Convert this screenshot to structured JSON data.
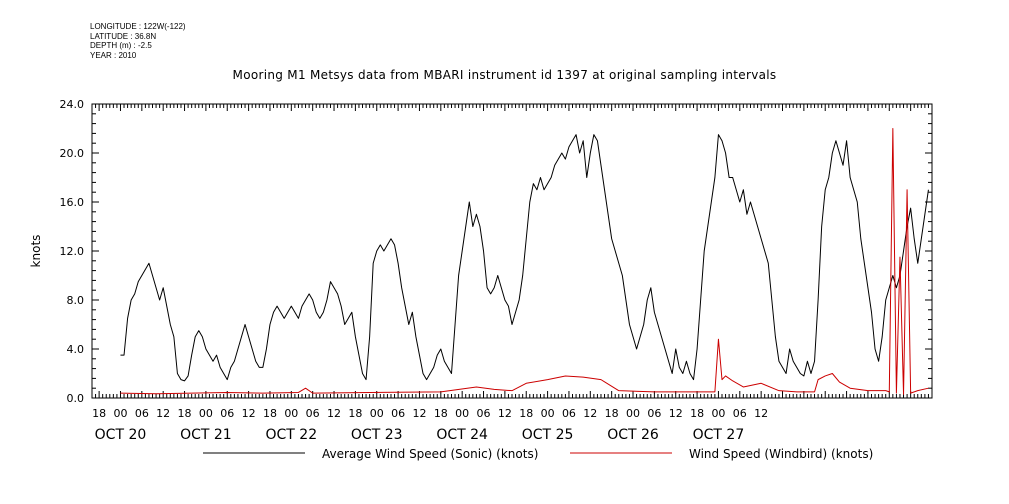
{
  "meta": {
    "longitude": "LONGITUDE : 122W(-122)",
    "latitude": "LATITUDE : 36.8N",
    "depth": "DEPTH (m) : -2.5",
    "year": "YEAR : 2010"
  },
  "chart_data": {
    "type": "line",
    "title": "Mooring M1 Metsys data from MBARI instrument id 1397 at original sampling intervals",
    "ylabel": "knots",
    "xlabel": "",
    "ylim": [
      0,
      24
    ],
    "yticks": [
      "0.0",
      "4.0",
      "8.0",
      "12.0",
      "16.0",
      "20.0",
      "24.0"
    ],
    "hour_ticks": [
      "18",
      "00",
      "06",
      "12",
      "18",
      "00",
      "06",
      "12",
      "18",
      "00",
      "06",
      "12",
      "18",
      "00",
      "06",
      "12",
      "18",
      "00",
      "06",
      "12",
      "18",
      "00",
      "06",
      "12",
      "18",
      "00",
      "06",
      "12",
      "18",
      "00",
      "06",
      "12"
    ],
    "day_labels": [
      "OCT 20",
      "OCT 21",
      "OCT 22",
      "OCT 23",
      "OCT 24",
      "OCT 25",
      "OCT 26",
      "OCT 27"
    ],
    "grid": false,
    "legend_position": "bottom",
    "series": [
      {
        "name": "Average Wind Speed (Sonic) (knots)",
        "color": "#000000",
        "points": [
          [
            0,
            3.5
          ],
          [
            1,
            3.5
          ],
          [
            2,
            6.5
          ],
          [
            3,
            8
          ],
          [
            4,
            8.5
          ],
          [
            5,
            9.5
          ],
          [
            6,
            10
          ],
          [
            7,
            10.5
          ],
          [
            8,
            11
          ],
          [
            9,
            10
          ],
          [
            10,
            9
          ],
          [
            11,
            8
          ],
          [
            12,
            9
          ],
          [
            13,
            7.5
          ],
          [
            14,
            6
          ],
          [
            15,
            5
          ],
          [
            16,
            2
          ],
          [
            17,
            1.5
          ],
          [
            18,
            1.4
          ],
          [
            19,
            1.8
          ],
          [
            20,
            3.5
          ],
          [
            21,
            5
          ],
          [
            22,
            5.5
          ],
          [
            23,
            5
          ],
          [
            24,
            4
          ],
          [
            25,
            3.5
          ],
          [
            26,
            3
          ],
          [
            27,
            3.5
          ],
          [
            28,
            2.5
          ],
          [
            29,
            2
          ],
          [
            30,
            1.5
          ],
          [
            31,
            2.5
          ],
          [
            32,
            3
          ],
          [
            33,
            4
          ],
          [
            34,
            5
          ],
          [
            35,
            6
          ],
          [
            36,
            5
          ],
          [
            37,
            4
          ],
          [
            38,
            3
          ],
          [
            39,
            2.5
          ],
          [
            40,
            2.5
          ],
          [
            41,
            4
          ],
          [
            42,
            6
          ],
          [
            43,
            7
          ],
          [
            44,
            7.5
          ],
          [
            45,
            7
          ],
          [
            46,
            6.5
          ],
          [
            47,
            7
          ],
          [
            48,
            7.5
          ],
          [
            49,
            7
          ],
          [
            50,
            6.5
          ],
          [
            51,
            7.5
          ],
          [
            52,
            8
          ],
          [
            53,
            8.5
          ],
          [
            54,
            8
          ],
          [
            55,
            7
          ],
          [
            56,
            6.5
          ],
          [
            57,
            7
          ],
          [
            58,
            8
          ],
          [
            59,
            9.5
          ],
          [
            60,
            9
          ],
          [
            61,
            8.5
          ],
          [
            62,
            7.5
          ],
          [
            63,
            6
          ],
          [
            64,
            6.5
          ],
          [
            65,
            7
          ],
          [
            66,
            5
          ],
          [
            67,
            3.5
          ],
          [
            68,
            2
          ],
          [
            69,
            1.5
          ],
          [
            70,
            5
          ],
          [
            71,
            11
          ],
          [
            72,
            12
          ],
          [
            73,
            12.5
          ],
          [
            74,
            12
          ],
          [
            75,
            12.5
          ],
          [
            76,
            13
          ],
          [
            77,
            12.5
          ],
          [
            78,
            11
          ],
          [
            79,
            9
          ],
          [
            80,
            7.5
          ],
          [
            81,
            6
          ],
          [
            82,
            7
          ],
          [
            83,
            5
          ],
          [
            84,
            3.5
          ],
          [
            85,
            2
          ],
          [
            86,
            1.5
          ],
          [
            87,
            2
          ],
          [
            88,
            2.5
          ],
          [
            89,
            3.5
          ],
          [
            90,
            4
          ],
          [
            91,
            3
          ],
          [
            92,
            2.5
          ],
          [
            93,
            2
          ],
          [
            94,
            6
          ],
          [
            95,
            10
          ],
          [
            96,
            12
          ],
          [
            97,
            14
          ],
          [
            98,
            16
          ],
          [
            99,
            14
          ],
          [
            100,
            15
          ],
          [
            101,
            14
          ],
          [
            102,
            12
          ],
          [
            103,
            9
          ],
          [
            104,
            8.5
          ],
          [
            105,
            9
          ],
          [
            106,
            10
          ],
          [
            107,
            9
          ],
          [
            108,
            8
          ],
          [
            109,
            7.5
          ],
          [
            110,
            6
          ],
          [
            111,
            7
          ],
          [
            112,
            8
          ],
          [
            113,
            10
          ],
          [
            114,
            13
          ],
          [
            115,
            16
          ],
          [
            116,
            17.5
          ],
          [
            117,
            17
          ],
          [
            118,
            18
          ],
          [
            119,
            17
          ],
          [
            120,
            17.5
          ],
          [
            121,
            18
          ],
          [
            122,
            19
          ],
          [
            123,
            19.5
          ],
          [
            124,
            20
          ],
          [
            125,
            19.5
          ],
          [
            126,
            20.5
          ],
          [
            127,
            21
          ],
          [
            128,
            21.5
          ],
          [
            129,
            20
          ],
          [
            130,
            21
          ],
          [
            131,
            18
          ],
          [
            132,
            20
          ],
          [
            133,
            21.5
          ],
          [
            134,
            21
          ],
          [
            135,
            19
          ],
          [
            136,
            17
          ],
          [
            137,
            15
          ],
          [
            138,
            13
          ],
          [
            139,
            12
          ],
          [
            140,
            11
          ],
          [
            141,
            10
          ],
          [
            142,
            8
          ],
          [
            143,
            6
          ],
          [
            144,
            5
          ],
          [
            145,
            4
          ],
          [
            146,
            5
          ],
          [
            147,
            6
          ],
          [
            148,
            8
          ],
          [
            149,
            9
          ],
          [
            150,
            7
          ],
          [
            151,
            6
          ],
          [
            152,
            5
          ],
          [
            153,
            4
          ],
          [
            154,
            3
          ],
          [
            155,
            2
          ],
          [
            156,
            4
          ],
          [
            157,
            2.5
          ],
          [
            158,
            2
          ],
          [
            159,
            3
          ],
          [
            160,
            2
          ],
          [
            161,
            1.5
          ],
          [
            162,
            4
          ],
          [
            163,
            8
          ],
          [
            164,
            12
          ],
          [
            165,
            14
          ],
          [
            166,
            16
          ],
          [
            167,
            18
          ],
          [
            168,
            21.5
          ],
          [
            169,
            21
          ],
          [
            170,
            20
          ],
          [
            171,
            18
          ],
          [
            172,
            18
          ],
          [
            173,
            17
          ],
          [
            174,
            16
          ],
          [
            175,
            17
          ],
          [
            176,
            15
          ],
          [
            177,
            16
          ],
          [
            178,
            15
          ],
          [
            179,
            14
          ],
          [
            180,
            13
          ],
          [
            181,
            12
          ],
          [
            182,
            11
          ],
          [
            183,
            8
          ],
          [
            184,
            5
          ],
          [
            185,
            3
          ],
          [
            186,
            2.5
          ],
          [
            187,
            2
          ],
          [
            188,
            4
          ],
          [
            189,
            3
          ],
          [
            190,
            2.5
          ],
          [
            191,
            2
          ],
          [
            192,
            1.8
          ],
          [
            193,
            3
          ],
          [
            194,
            2
          ],
          [
            195,
            3
          ],
          [
            196,
            8
          ],
          [
            197,
            14
          ],
          [
            198,
            17
          ],
          [
            199,
            18
          ],
          [
            200,
            20
          ],
          [
            201,
            21
          ],
          [
            202,
            20
          ],
          [
            203,
            19
          ],
          [
            204,
            21
          ],
          [
            205,
            18
          ],
          [
            206,
            17
          ],
          [
            207,
            16
          ],
          [
            208,
            13
          ],
          [
            209,
            11
          ],
          [
            210,
            9
          ],
          [
            211,
            7
          ],
          [
            212,
            4
          ],
          [
            213,
            3
          ],
          [
            214,
            5
          ],
          [
            215,
            8
          ],
          [
            216,
            9
          ],
          [
            217,
            10
          ],
          [
            218,
            9
          ],
          [
            219,
            10
          ],
          [
            220,
            12
          ],
          [
            221,
            14
          ],
          [
            222,
            15.5
          ],
          [
            223,
            13
          ],
          [
            224,
            11
          ],
          [
            225,
            13
          ],
          [
            226,
            15
          ],
          [
            227,
            17
          ]
        ]
      },
      {
        "name": "Wind Speed (Windbird) (knots)",
        "color": "#cc0000",
        "points": [
          [
            0,
            0.4
          ],
          [
            10,
            0.35
          ],
          [
            20,
            0.4
          ],
          [
            30,
            0.45
          ],
          [
            40,
            0.4
          ],
          [
            50,
            0.45
          ],
          [
            52,
            0.8
          ],
          [
            54,
            0.4
          ],
          [
            70,
            0.45
          ],
          [
            90,
            0.5
          ],
          [
            100,
            0.9
          ],
          [
            105,
            0.7
          ],
          [
            110,
            0.6
          ],
          [
            114,
            1.2
          ],
          [
            120,
            1.5
          ],
          [
            125,
            1.8
          ],
          [
            130,
            1.7
          ],
          [
            135,
            1.5
          ],
          [
            140,
            0.6
          ],
          [
            150,
            0.5
          ],
          [
            160,
            0.5
          ],
          [
            167,
            0.5
          ],
          [
            168,
            4.8
          ],
          [
            169,
            1.5
          ],
          [
            170,
            1.8
          ],
          [
            172,
            1.4
          ],
          [
            175,
            0.9
          ],
          [
            180,
            1.2
          ],
          [
            185,
            0.6
          ],
          [
            190,
            0.5
          ],
          [
            195,
            0.5
          ],
          [
            196,
            1.5
          ],
          [
            198,
            1.8
          ],
          [
            200,
            2.0
          ],
          [
            202,
            1.3
          ],
          [
            205,
            0.8
          ],
          [
            210,
            0.6
          ],
          [
            215,
            0.6
          ],
          [
            216,
            0.5
          ],
          [
            217,
            22
          ],
          [
            218,
            0.4
          ],
          [
            219,
            11.5
          ],
          [
            220,
            0.3
          ],
          [
            221,
            17
          ],
          [
            222,
            0.4
          ],
          [
            224,
            0.6
          ],
          [
            227,
            0.8
          ]
        ]
      }
    ]
  }
}
